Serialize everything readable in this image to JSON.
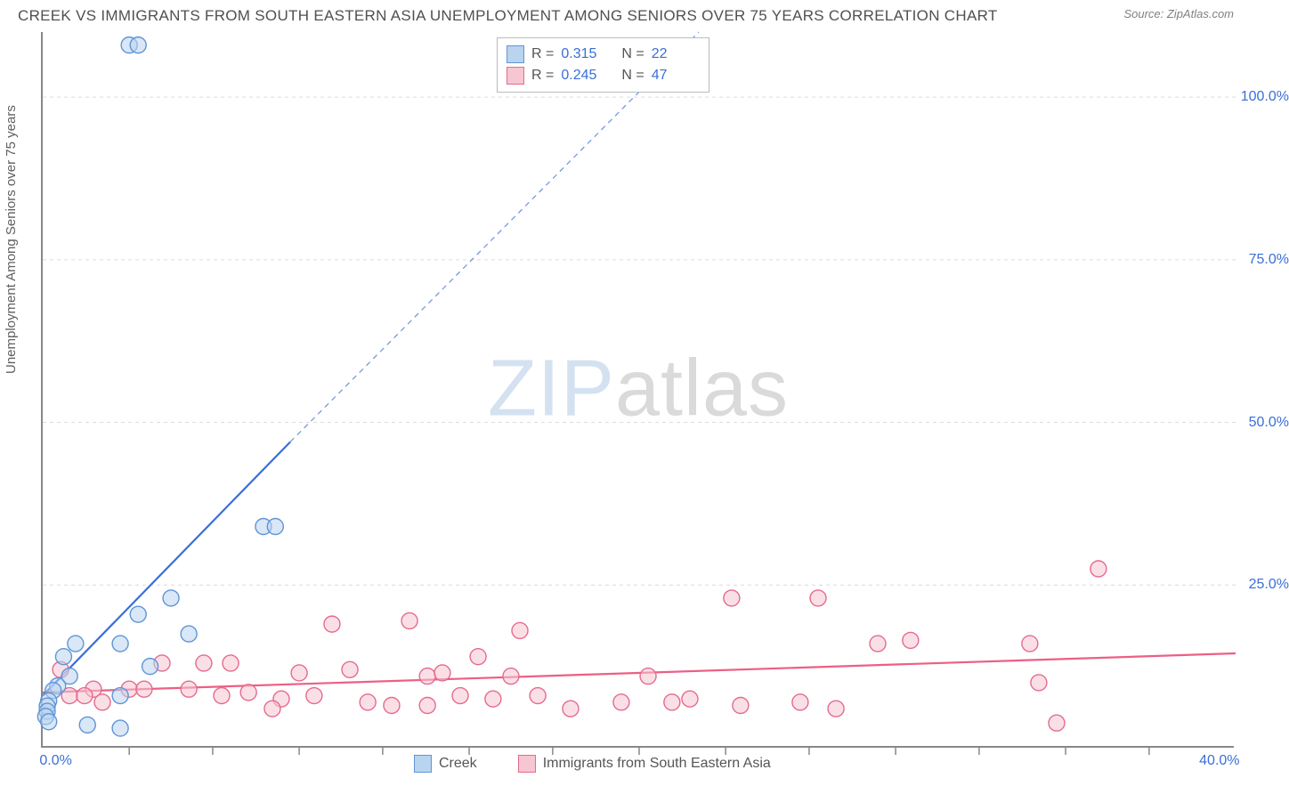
{
  "title": "CREEK VS IMMIGRANTS FROM SOUTH EASTERN ASIA UNEMPLOYMENT AMONG SENIORS OVER 75 YEARS CORRELATION CHART",
  "source": "Source: ZipAtlas.com",
  "ylabel": "Unemployment Among Seniors over 75 years",
  "watermark": {
    "part1": "ZIP",
    "part2": "atlas"
  },
  "chart": {
    "type": "scatter-with-trend",
    "background_color": "#ffffff",
    "grid_color": "#dcdcdc",
    "axis_color": "#888888",
    "tick_color": "#888888",
    "xlim": [
      0,
      40
    ],
    "ylim": [
      0,
      110
    ],
    "xtick_major": [
      0,
      40
    ],
    "xtick_minor": [
      2.9,
      5.7,
      8.6,
      11.4,
      14.3,
      17.1,
      20.0,
      22.9,
      25.7,
      28.6,
      31.4,
      34.3,
      37.1
    ],
    "xtick_labels": [
      "0.0%",
      "40.0%"
    ],
    "ytick_major": [
      25,
      50,
      75,
      100
    ],
    "ytick_labels": [
      "25.0%",
      "50.0%",
      "75.0%",
      "100.0%"
    ],
    "ytick_label_color": "#3a6fd8",
    "xtick_label_color": "#3a6fd8",
    "label_fontsize": 16,
    "title_fontsize": 17,
    "title_color": "#505050",
    "ylabel_color": "#606060",
    "ylabel_fontsize": 15,
    "marker_radius": 9,
    "marker_stroke_width": 1.4,
    "trend_line_width": 2.2
  },
  "series": [
    {
      "name": "Creek",
      "fill_color": "#b9d4ee",
      "stroke_color": "#5f95d6",
      "fill_opacity": 0.55,
      "R": "0.315",
      "N": "22",
      "trend": {
        "solid": {
          "x1": 0,
          "y1": 8,
          "x2": 8.3,
          "y2": 47
        },
        "dashed": {
          "x1": 8.3,
          "y1": 47,
          "x2": 22,
          "y2": 110
        },
        "color": "#3a6fd8"
      },
      "points": [
        {
          "x": 2.9,
          "y": 108
        },
        {
          "x": 3.2,
          "y": 108
        },
        {
          "x": 7.4,
          "y": 34
        },
        {
          "x": 7.8,
          "y": 34
        },
        {
          "x": 4.3,
          "y": 23
        },
        {
          "x": 3.2,
          "y": 20.5
        },
        {
          "x": 4.9,
          "y": 17.5
        },
        {
          "x": 2.6,
          "y": 16
        },
        {
          "x": 1.1,
          "y": 16
        },
        {
          "x": 0.7,
          "y": 14
        },
        {
          "x": 3.6,
          "y": 12.5
        },
        {
          "x": 0.9,
          "y": 11
        },
        {
          "x": 0.5,
          "y": 9.5
        },
        {
          "x": 0.35,
          "y": 8.8
        },
        {
          "x": 2.6,
          "y": 8
        },
        {
          "x": 0.2,
          "y": 7.2
        },
        {
          "x": 0.15,
          "y": 6.4
        },
        {
          "x": 0.15,
          "y": 5.6
        },
        {
          "x": 0.1,
          "y": 4.8
        },
        {
          "x": 1.5,
          "y": 3.5
        },
        {
          "x": 2.6,
          "y": 3.0
        },
        {
          "x": 0.2,
          "y": 4.0
        }
      ]
    },
    {
      "name": "Immigrants from South Eastern Asia",
      "fill_color": "#f6c6d2",
      "stroke_color": "#e66a8d",
      "fill_opacity": 0.55,
      "R": "0.245",
      "N": "47",
      "trend": {
        "solid": {
          "x1": 0,
          "y1": 8.5,
          "x2": 40,
          "y2": 14.5
        },
        "color": "#ec5f86"
      },
      "points": [
        {
          "x": 35.4,
          "y": 27.5
        },
        {
          "x": 23.1,
          "y": 23
        },
        {
          "x": 26.0,
          "y": 23
        },
        {
          "x": 9.7,
          "y": 19
        },
        {
          "x": 12.3,
          "y": 19.5
        },
        {
          "x": 16.0,
          "y": 18
        },
        {
          "x": 29.1,
          "y": 16.5
        },
        {
          "x": 33.1,
          "y": 16
        },
        {
          "x": 28.0,
          "y": 16
        },
        {
          "x": 14.6,
          "y": 14
        },
        {
          "x": 5.4,
          "y": 13
        },
        {
          "x": 6.3,
          "y": 13
        },
        {
          "x": 4.0,
          "y": 13
        },
        {
          "x": 8.6,
          "y": 11.5
        },
        {
          "x": 10.3,
          "y": 12
        },
        {
          "x": 12.9,
          "y": 11
        },
        {
          "x": 13.4,
          "y": 11.5
        },
        {
          "x": 15.7,
          "y": 11
        },
        {
          "x": 20.3,
          "y": 11
        },
        {
          "x": 33.4,
          "y": 10
        },
        {
          "x": 0.6,
          "y": 12
        },
        {
          "x": 1.7,
          "y": 9
        },
        {
          "x": 2.9,
          "y": 9
        },
        {
          "x": 3.4,
          "y": 9
        },
        {
          "x": 4.9,
          "y": 9
        },
        {
          "x": 6.0,
          "y": 8
        },
        {
          "x": 6.9,
          "y": 8.5
        },
        {
          "x": 8.0,
          "y": 7.5
        },
        {
          "x": 9.1,
          "y": 8
        },
        {
          "x": 10.9,
          "y": 7
        },
        {
          "x": 11.7,
          "y": 6.5
        },
        {
          "x": 12.9,
          "y": 6.5
        },
        {
          "x": 14.0,
          "y": 8
        },
        {
          "x": 15.1,
          "y": 7.5
        },
        {
          "x": 16.6,
          "y": 8
        },
        {
          "x": 17.7,
          "y": 6
        },
        {
          "x": 19.4,
          "y": 7
        },
        {
          "x": 21.1,
          "y": 7
        },
        {
          "x": 21.7,
          "y": 7.5
        },
        {
          "x": 23.4,
          "y": 6.5
        },
        {
          "x": 25.4,
          "y": 7
        },
        {
          "x": 26.6,
          "y": 6
        },
        {
          "x": 0.9,
          "y": 8
        },
        {
          "x": 1.4,
          "y": 8
        },
        {
          "x": 2.0,
          "y": 7
        },
        {
          "x": 34.0,
          "y": 3.8
        },
        {
          "x": 7.7,
          "y": 6
        }
      ]
    }
  ],
  "legend_bottom": [
    {
      "swatch_fill": "#b9d4ee",
      "swatch_stroke": "#5f95d6",
      "label": "Creek"
    },
    {
      "swatch_fill": "#f6c6d2",
      "swatch_stroke": "#e66a8d",
      "label": "Immigrants from South Eastern Asia"
    }
  ],
  "legend_top_labels": {
    "R": "R =",
    "N": "N ="
  }
}
